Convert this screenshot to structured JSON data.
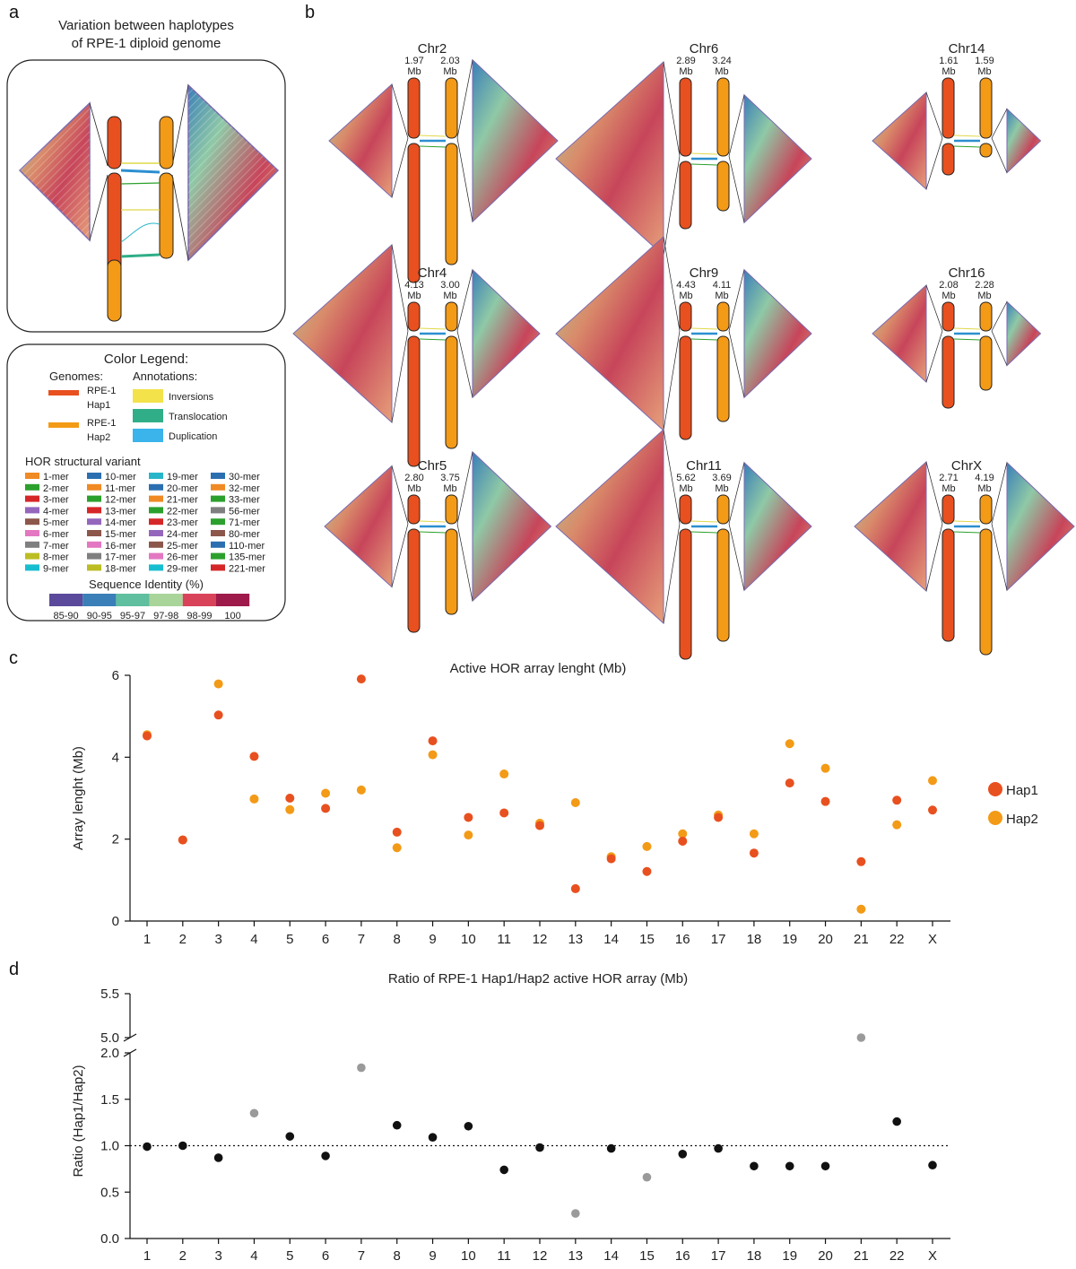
{
  "panel_letters": {
    "a": "a",
    "b": "b",
    "c": "c",
    "d": "d"
  },
  "colors": {
    "hap1": "#e8501f",
    "hap2": "#f39a17",
    "black": "#111111",
    "gray": "#9a9a9a"
  },
  "panel_a": {
    "title_line1": "Variation between haplotypes",
    "title_line2": "of RPE-1 diploid genome"
  },
  "legend": {
    "title": "Color Legend:",
    "genomes_label": "Genomes:",
    "annotations_label": "Annotations:",
    "genomes": [
      {
        "line1": "RPE-1",
        "line2": "Hap1",
        "color": "#e8501f"
      },
      {
        "line1": "RPE-1",
        "line2": "Hap2",
        "color": "#f39a17"
      }
    ],
    "annotations": [
      {
        "label": "Inversions",
        "color": "#f3e24a"
      },
      {
        "label": "Translocation",
        "color": "#2fae87"
      },
      {
        "label": "Duplication",
        "color": "#3ab4ea"
      }
    ],
    "hor_title": "HOR structural variant",
    "hor_items": [
      {
        "label": "1-mer",
        "color": "#f08a24"
      },
      {
        "label": "10-mer",
        "color": "#2c6fb0"
      },
      {
        "label": "19-mer",
        "color": "#27b6c9"
      },
      {
        "label": "30-mer",
        "color": "#2c6fb0"
      },
      {
        "label": "2-mer",
        "color": "#2ca02c"
      },
      {
        "label": "11-mer",
        "color": "#f08a24"
      },
      {
        "label": "20-mer",
        "color": "#2c6fb0"
      },
      {
        "label": "32-mer",
        "color": "#f08a24"
      },
      {
        "label": "3-mer",
        "color": "#d62728"
      },
      {
        "label": "12-mer",
        "color": "#2ca02c"
      },
      {
        "label": "21-mer",
        "color": "#f08a24"
      },
      {
        "label": "33-mer",
        "color": "#2ca02c"
      },
      {
        "label": "4-mer",
        "color": "#9467bd"
      },
      {
        "label": "13-mer",
        "color": "#d62728"
      },
      {
        "label": "22-mer",
        "color": "#2ca02c"
      },
      {
        "label": "56-mer",
        "color": "#7f7f7f"
      },
      {
        "label": "5-mer",
        "color": "#8c564b"
      },
      {
        "label": "14-mer",
        "color": "#9467bd"
      },
      {
        "label": "23-mer",
        "color": "#d62728"
      },
      {
        "label": "71-mer",
        "color": "#2ca02c"
      },
      {
        "label": "6-mer",
        "color": "#e377c2"
      },
      {
        "label": "15-mer",
        "color": "#8c564b"
      },
      {
        "label": "24-mer",
        "color": "#9467bd"
      },
      {
        "label": "80-mer",
        "color": "#8c564b"
      },
      {
        "label": "7-mer",
        "color": "#7f7f7f"
      },
      {
        "label": "16-mer",
        "color": "#e377c2"
      },
      {
        "label": "25-mer",
        "color": "#8c564b"
      },
      {
        "label": "110-mer",
        "color": "#2c6fb0"
      },
      {
        "label": "8-mer",
        "color": "#bcbd22"
      },
      {
        "label": "17-mer",
        "color": "#7f7f7f"
      },
      {
        "label": "26-mer",
        "color": "#e377c2"
      },
      {
        "label": "135-mer",
        "color": "#2ca02c"
      },
      {
        "label": "9-mer",
        "color": "#17becf"
      },
      {
        "label": "18-mer",
        "color": "#bcbd22"
      },
      {
        "label": "29-mer",
        "color": "#17becf"
      },
      {
        "label": "221-mer",
        "color": "#d62728"
      }
    ],
    "identity_title": "Sequence Identity (%)",
    "identity_bins": [
      {
        "label": "85-90",
        "color": "#5b4a9b"
      },
      {
        "label": "90-95",
        "color": "#3a7fb8"
      },
      {
        "label": "95-97",
        "color": "#5fbf9f"
      },
      {
        "label": "97-98",
        "color": "#a9d49a"
      },
      {
        "label": "98-99",
        "color": "#d9435a"
      },
      {
        "label": "100",
        "color": "#9e1a4a"
      }
    ]
  },
  "panel_b": {
    "chromosomes": [
      {
        "name": "Chr2",
        "hap1": "1.97",
        "hap2": "2.03",
        "unit": "Mb"
      },
      {
        "name": "Chr6",
        "hap1": "2.89",
        "hap2": "3.24",
        "unit": "Mb"
      },
      {
        "name": "Chr14",
        "hap1": "1.61",
        "hap2": "1.59",
        "unit": "Mb"
      },
      {
        "name": "Chr4",
        "hap1": "4.13",
        "hap2": "3.00",
        "unit": "Mb"
      },
      {
        "name": "Chr9",
        "hap1": "4.43",
        "hap2": "4.11",
        "unit": "Mb"
      },
      {
        "name": "Chr16",
        "hap1": "2.08",
        "hap2": "2.28",
        "unit": "Mb"
      },
      {
        "name": "Chr5",
        "hap1": "2.80",
        "hap2": "3.75",
        "unit": "Mb"
      },
      {
        "name": "Chr11",
        "hap1": "5.62",
        "hap2": "3.69",
        "unit": "Mb"
      },
      {
        "name": "ChrX",
        "hap1": "2.71",
        "hap2": "4.19",
        "unit": "Mb"
      }
    ]
  },
  "chart_data": [
    {
      "type": "scatter",
      "title": "Active HOR array lenght (Mb)",
      "xlabel": "",
      "ylabel": "Array lenght (Mb)",
      "ylim": [
        0,
        6
      ],
      "yticks": [
        "0",
        "2",
        "4",
        "6"
      ],
      "categories": [
        "1",
        "2",
        "3",
        "4",
        "5",
        "6",
        "7",
        "8",
        "9",
        "10",
        "11",
        "12",
        "13",
        "14",
        "15",
        "16",
        "17",
        "18",
        "19",
        "20",
        "21",
        "22",
        "X"
      ],
      "series": [
        {
          "name": "Hap1",
          "color": "#e8501f",
          "values": [
            4.52,
            1.98,
            5.03,
            4.02,
            3.0,
            2.75,
            5.91,
            2.17,
            4.4,
            2.53,
            2.64,
            2.33,
            0.79,
            1.52,
            1.21,
            1.95,
            2.53,
            1.66,
            3.37,
            2.92,
            1.45,
            2.95,
            2.71
          ]
        },
        {
          "name": "Hap2",
          "color": "#f39a17",
          "values": [
            4.55,
            1.98,
            5.79,
            2.98,
            2.72,
            3.12,
            3.2,
            1.79,
            4.06,
            2.1,
            3.59,
            2.39,
            2.89,
            1.57,
            1.82,
            2.13,
            2.59,
            2.13,
            4.33,
            3.73,
            0.29,
            2.35,
            3.43
          ]
        }
      ]
    },
    {
      "type": "scatter",
      "title": "Ratio of RPE-1 Hap1/Hap2 active HOR array (Mb)",
      "xlabel": "",
      "ylabel": "Ratio (Hap1/Hap2)",
      "ylim_lower": [
        0,
        2.0
      ],
      "ylim_upper": [
        5.0,
        5.5
      ],
      "yticks_lower": [
        "0.0",
        "0.5",
        "1.0",
        "1.5",
        "2.0"
      ],
      "yticks_upper": [
        "5.0",
        "5.5"
      ],
      "reference_line": 1.0,
      "categories": [
        "1",
        "2",
        "3",
        "4",
        "5",
        "6",
        "7",
        "8",
        "9",
        "10",
        "11",
        "12",
        "13",
        "14",
        "15",
        "16",
        "17",
        "18",
        "19",
        "20",
        "21",
        "22",
        "X"
      ],
      "values": [
        0.99,
        1.0,
        0.87,
        1.35,
        1.1,
        0.89,
        1.84,
        1.22,
        1.09,
        1.21,
        0.74,
        0.98,
        0.27,
        0.97,
        0.66,
        0.91,
        0.97,
        0.78,
        0.78,
        0.78,
        5.0,
        1.26,
        0.79
      ],
      "outlier": [
        false,
        false,
        false,
        true,
        false,
        false,
        true,
        false,
        false,
        false,
        false,
        false,
        true,
        false,
        true,
        false,
        false,
        false,
        false,
        false,
        true,
        false,
        false
      ]
    }
  ]
}
